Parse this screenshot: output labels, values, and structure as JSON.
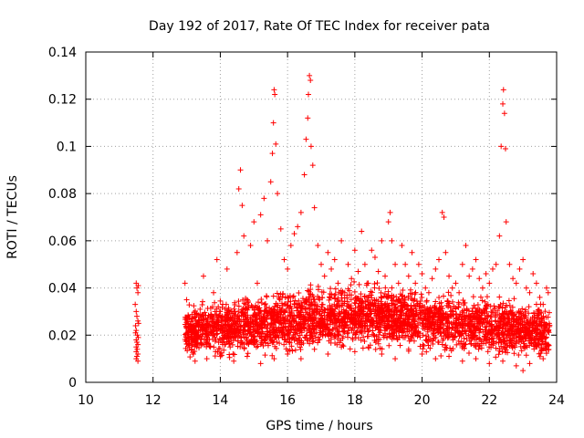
{
  "chart_data": {
    "type": "scatter",
    "title": "Day 192 of 2017, Rate Of TEC Index for receiver pata",
    "xlabel": "GPS time / hours",
    "ylabel": "ROTI / TECUs",
    "xlim": [
      10,
      24
    ],
    "ylim": [
      0,
      0.14
    ],
    "xticks": [
      10,
      12,
      14,
      16,
      18,
      20,
      22,
      24
    ],
    "xtick_labels": [
      "10",
      "12",
      "14",
      "16",
      "18",
      "20",
      "22",
      "24"
    ],
    "yticks": [
      0,
      0.02,
      0.04,
      0.06,
      0.08,
      0.1,
      0.12,
      0.14
    ],
    "ytick_labels": [
      "0",
      "0.02",
      "0.04",
      "0.06",
      "0.08",
      "0.1",
      "0.12",
      "0.14"
    ],
    "grid": true,
    "marker": "+",
    "color": "#ff0000",
    "series": [
      {
        "name": "ROTI",
        "points": [
          [
            11.5,
            0.042
          ],
          [
            11.52,
            0.04
          ],
          [
            11.55,
            0.038
          ],
          [
            11.5,
            0.03
          ],
          [
            11.52,
            0.028
          ],
          [
            11.55,
            0.026
          ],
          [
            11.48,
            0.024
          ],
          [
            11.5,
            0.022
          ],
          [
            11.53,
            0.02
          ],
          [
            11.56,
            0.019
          ],
          [
            11.5,
            0.018
          ],
          [
            11.52,
            0.017
          ],
          [
            11.55,
            0.016
          ],
          [
            11.5,
            0.015
          ],
          [
            11.53,
            0.014
          ],
          [
            11.5,
            0.013
          ],
          [
            11.55,
            0.012
          ],
          [
            11.52,
            0.011
          ],
          [
            11.5,
            0.01
          ],
          [
            11.55,
            0.009
          ],
          [
            11.48,
            0.021
          ],
          [
            11.57,
            0.025
          ],
          [
            11.47,
            0.033
          ],
          [
            11.56,
            0.041
          ],
          [
            12.95,
            0.042
          ],
          [
            13.0,
            0.035
          ],
          [
            13.05,
            0.028
          ],
          [
            13.1,
            0.022
          ],
          [
            13.15,
            0.018
          ],
          [
            13.2,
            0.012
          ],
          [
            13.25,
            0.009
          ],
          [
            13.3,
            0.025
          ],
          [
            13.4,
            0.031
          ],
          [
            13.5,
            0.045
          ],
          [
            13.6,
            0.02
          ],
          [
            13.7,
            0.015
          ],
          [
            13.8,
            0.038
          ],
          [
            13.9,
            0.052
          ],
          [
            14.0,
            0.03
          ],
          [
            14.1,
            0.022
          ],
          [
            14.2,
            0.048
          ],
          [
            14.3,
            0.027
          ],
          [
            14.4,
            0.019
          ],
          [
            14.5,
            0.055
          ],
          [
            14.55,
            0.082
          ],
          [
            14.6,
            0.09
          ],
          [
            14.65,
            0.075
          ],
          [
            14.7,
            0.062
          ],
          [
            14.8,
            0.035
          ],
          [
            14.9,
            0.058
          ],
          [
            15.0,
            0.068
          ],
          [
            15.1,
            0.042
          ],
          [
            15.2,
            0.071
          ],
          [
            15.3,
            0.078
          ],
          [
            15.4,
            0.06
          ],
          [
            15.5,
            0.085
          ],
          [
            15.55,
            0.097
          ],
          [
            15.58,
            0.11
          ],
          [
            15.6,
            0.124
          ],
          [
            15.62,
            0.122
          ],
          [
            15.65,
            0.101
          ],
          [
            15.7,
            0.08
          ],
          [
            15.8,
            0.065
          ],
          [
            15.9,
            0.052
          ],
          [
            16.0,
            0.048
          ],
          [
            16.1,
            0.058
          ],
          [
            16.2,
            0.063
          ],
          [
            16.3,
            0.066
          ],
          [
            16.4,
            0.072
          ],
          [
            16.5,
            0.088
          ],
          [
            16.55,
            0.103
          ],
          [
            16.6,
            0.112
          ],
          [
            16.62,
            0.122
          ],
          [
            16.65,
            0.13
          ],
          [
            16.68,
            0.128
          ],
          [
            16.7,
            0.1
          ],
          [
            16.75,
            0.092
          ],
          [
            16.8,
            0.074
          ],
          [
            16.9,
            0.058
          ],
          [
            17.0,
            0.05
          ],
          [
            17.1,
            0.045
          ],
          [
            17.2,
            0.055
          ],
          [
            17.3,
            0.048
          ],
          [
            17.4,
            0.052
          ],
          [
            17.5,
            0.042
          ],
          [
            17.6,
            0.06
          ],
          [
            17.7,
            0.038
          ],
          [
            17.8,
            0.05
          ],
          [
            17.9,
            0.044
          ],
          [
            18.0,
            0.056
          ],
          [
            18.1,
            0.047
          ],
          [
            18.2,
            0.064
          ],
          [
            18.3,
            0.05
          ],
          [
            18.4,
            0.042
          ],
          [
            18.5,
            0.056
          ],
          [
            18.6,
            0.053
          ],
          [
            18.7,
            0.047
          ],
          [
            18.8,
            0.06
          ],
          [
            18.9,
            0.045
          ],
          [
            19.0,
            0.068
          ],
          [
            19.05,
            0.072
          ],
          [
            19.1,
            0.06
          ],
          [
            19.2,
            0.05
          ],
          [
            19.3,
            0.042
          ],
          [
            19.4,
            0.058
          ],
          [
            19.5,
            0.05
          ],
          [
            19.6,
            0.045
          ],
          [
            19.7,
            0.055
          ],
          [
            19.8,
            0.042
          ],
          [
            19.9,
            0.05
          ],
          [
            20.0,
            0.046
          ],
          [
            20.1,
            0.04
          ],
          [
            20.2,
            0.038
          ],
          [
            20.3,
            0.044
          ],
          [
            20.4,
            0.048
          ],
          [
            20.5,
            0.052
          ],
          [
            20.6,
            0.072
          ],
          [
            20.65,
            0.07
          ],
          [
            20.7,
            0.055
          ],
          [
            20.8,
            0.045
          ],
          [
            20.9,
            0.04
          ],
          [
            21.0,
            0.042
          ],
          [
            21.1,
            0.038
          ],
          [
            21.2,
            0.05
          ],
          [
            21.3,
            0.058
          ],
          [
            21.4,
            0.045
          ],
          [
            21.5,
            0.048
          ],
          [
            21.6,
            0.052
          ],
          [
            21.7,
            0.044
          ],
          [
            21.8,
            0.04
          ],
          [
            21.9,
            0.046
          ],
          [
            22.0,
            0.042
          ],
          [
            22.1,
            0.048
          ],
          [
            22.2,
            0.05
          ],
          [
            22.3,
            0.062
          ],
          [
            22.35,
            0.1
          ],
          [
            22.4,
            0.118
          ],
          [
            22.42,
            0.124
          ],
          [
            22.45,
            0.114
          ],
          [
            22.48,
            0.099
          ],
          [
            22.5,
            0.068
          ],
          [
            22.6,
            0.05
          ],
          [
            22.7,
            0.044
          ],
          [
            22.8,
            0.042
          ],
          [
            22.9,
            0.048
          ],
          [
            23.0,
            0.052
          ],
          [
            23.1,
            0.04
          ],
          [
            23.2,
            0.038
          ],
          [
            23.3,
            0.046
          ],
          [
            23.4,
            0.042
          ],
          [
            23.5,
            0.036
          ],
          [
            23.6,
            0.033
          ],
          [
            23.7,
            0.04
          ],
          [
            23.75,
            0.038
          ],
          [
            13.3,
            0.015
          ],
          [
            13.6,
            0.01
          ],
          [
            14.0,
            0.012
          ],
          [
            14.4,
            0.009
          ],
          [
            14.8,
            0.011
          ],
          [
            15.2,
            0.008
          ],
          [
            15.6,
            0.01
          ],
          [
            16.0,
            0.012
          ],
          [
            16.4,
            0.01
          ],
          [
            16.8,
            0.014
          ],
          [
            17.2,
            0.012
          ],
          [
            17.6,
            0.015
          ],
          [
            18.0,
            0.013
          ],
          [
            18.4,
            0.015
          ],
          [
            18.8,
            0.012
          ],
          [
            19.2,
            0.01
          ],
          [
            19.6,
            0.014
          ],
          [
            20.0,
            0.012
          ],
          [
            20.4,
            0.01
          ],
          [
            20.8,
            0.011
          ],
          [
            21.2,
            0.009
          ],
          [
            21.6,
            0.01
          ],
          [
            22.0,
            0.008
          ],
          [
            22.4,
            0.009
          ],
          [
            22.8,
            0.007
          ],
          [
            23.0,
            0.005
          ],
          [
            23.2,
            0.008
          ],
          [
            23.6,
            0.01
          ]
        ]
      }
    ],
    "band": {
      "description": "dense cloud of points",
      "x_start": 12.95,
      "x_end": 23.8,
      "min_values": [
        0.009,
        0.007,
        0.008,
        0.008,
        0.01,
        0.011,
        0.012,
        0.011,
        0.01,
        0.009,
        0.008,
        0.006
      ],
      "max_values": [
        0.034,
        0.038,
        0.04,
        0.042,
        0.044,
        0.045,
        0.044,
        0.042,
        0.04,
        0.04,
        0.038,
        0.035
      ]
    }
  }
}
